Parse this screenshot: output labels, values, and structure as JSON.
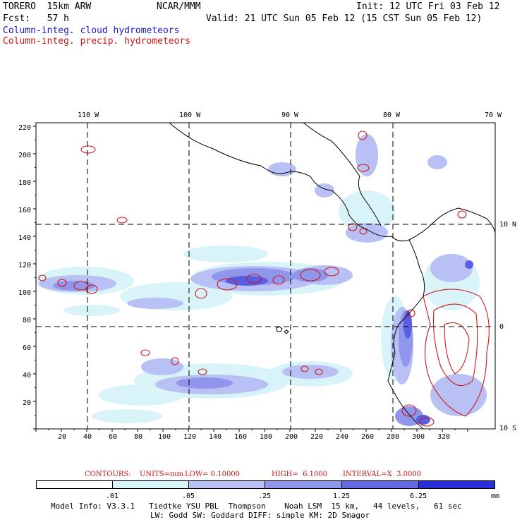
{
  "header": {
    "model": "TORERO  15km ARW",
    "center": "NCAR/MMM",
    "init": "Init: 12 UTC Fri 03 Feb 12",
    "fcst": "Fcst:   57 h",
    "valid": "Valid: 21 UTC Sun 05 Feb 12 (15 CST Sun 05 Feb 12)",
    "field1": "Column-integ. cloud hydrometeors",
    "field2": "Column-integ. precip. hydrometeors"
  },
  "map": {
    "lon_labels": [
      "110 W",
      "100 W",
      "90 W",
      "80 W",
      "70 W"
    ],
    "lat_labels": [
      "10 N",
      "0",
      "10 S"
    ],
    "y_ticks": [
      "220",
      "200",
      "180",
      "160",
      "140",
      "120",
      "100",
      "80",
      "60",
      "40",
      "20"
    ],
    "x_ticks": [
      "20",
      "40",
      "60",
      "80",
      "100",
      "120",
      "140",
      "160",
      "180",
      "200",
      "220",
      "240",
      "260",
      "280",
      "300",
      "320"
    ]
  },
  "contours": {
    "label": "CONTOURS:",
    "units": "UNITS=mm",
    "low": "LOW= 0.10000",
    "high": "HIGH=  6.1000",
    "interval": "INTERVAL=X  3.0000"
  },
  "colorbar": {
    "labels": [
      ".01",
      ".05",
      ".25",
      "1.25",
      "6.25"
    ],
    "unit": "mm",
    "colors": [
      "#ffffff",
      "#d8f4f8",
      "#b8c0f4",
      "#9096ec",
      "#6468e4",
      "#3c40dc",
      "#1414d0"
    ]
  },
  "footer": {
    "line1": "Model Info: V3.3.1   Tiedtke YSU PBL  Thompson    Noah LSM  15 km,   44 levels,   61 sec",
    "line2": "LW: Godd SW: Goddard DIFF: simple KM: 2D Smagor"
  }
}
